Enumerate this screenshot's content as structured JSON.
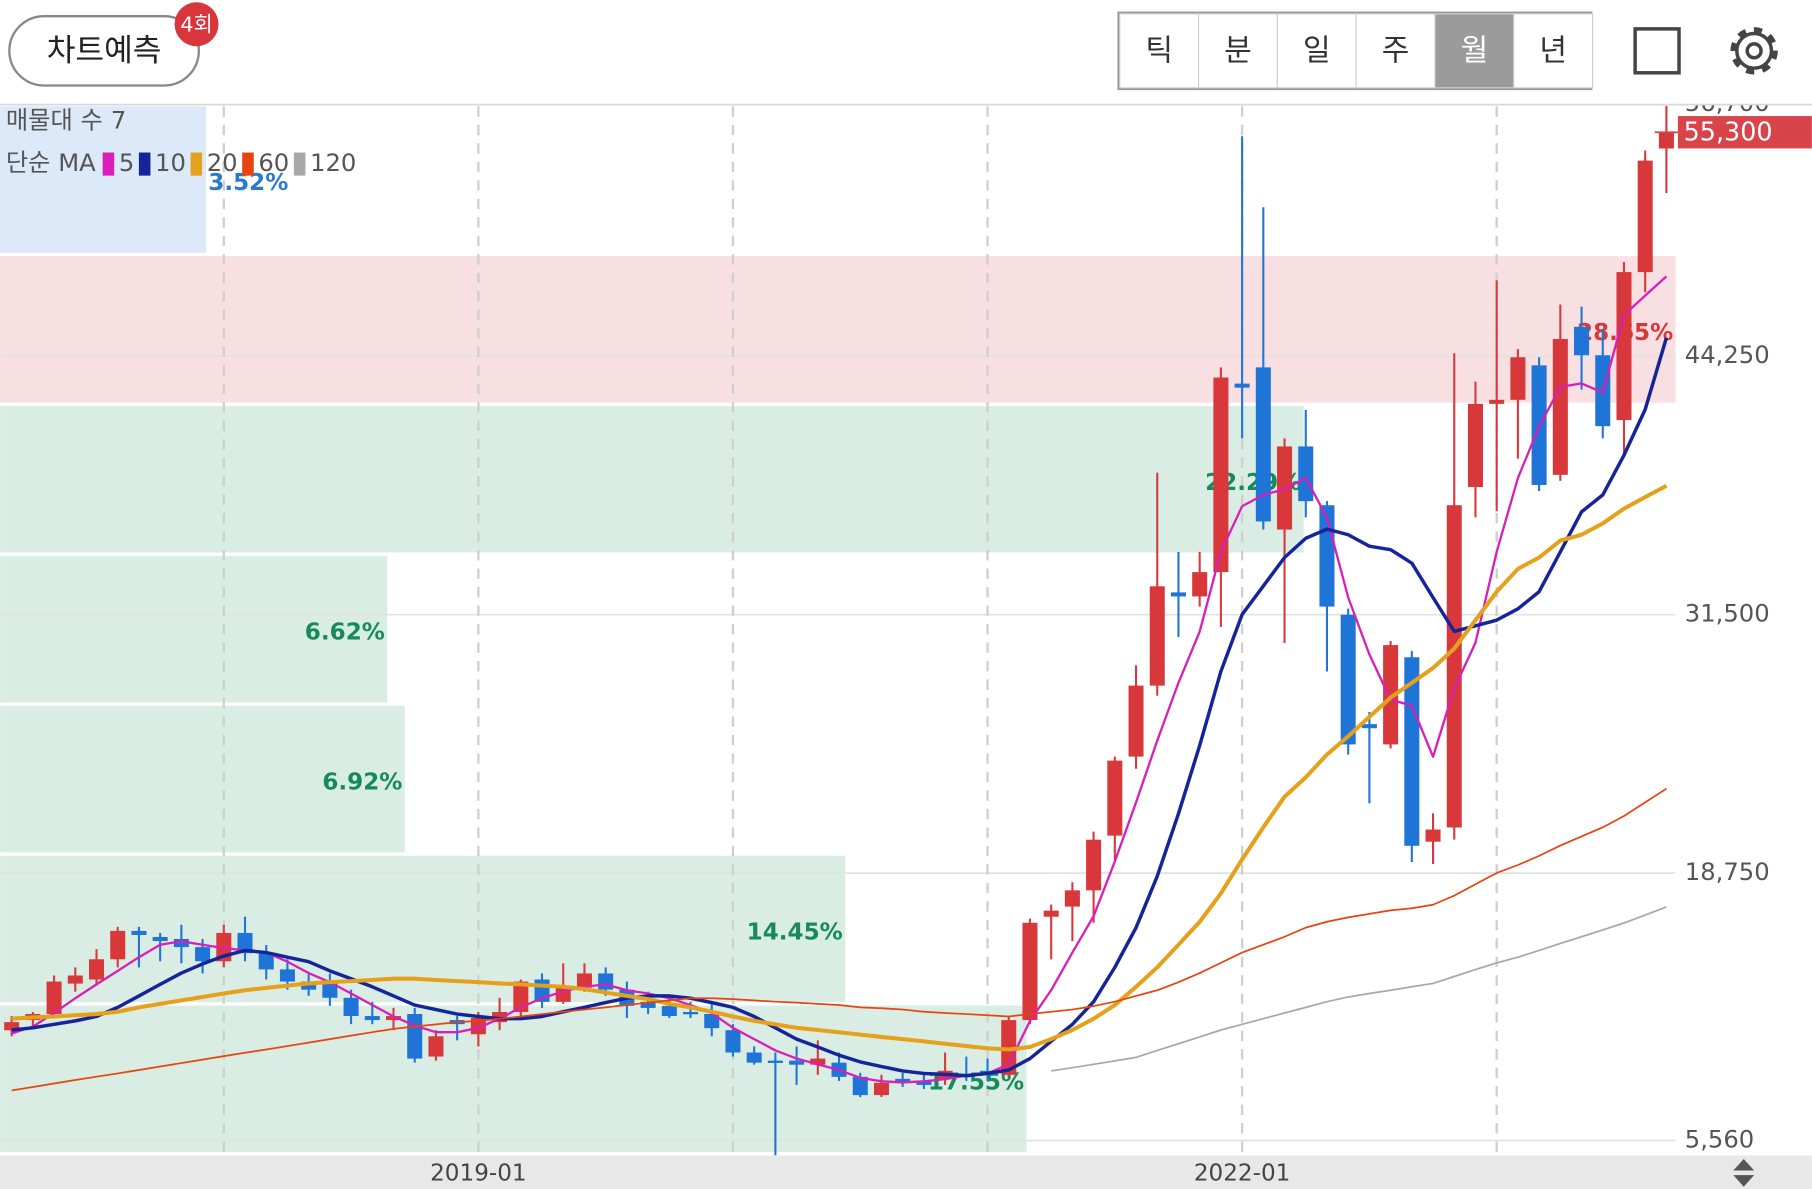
{
  "header": {
    "predict_button": "차트예측",
    "badge": "4회",
    "periods": [
      "틱",
      "분",
      "일",
      "주",
      "월",
      "년"
    ],
    "selected_period": 4
  },
  "chart_data": {
    "type": "candlestick",
    "categories": [
      null,
      null,
      null,
      null,
      null,
      null,
      null,
      null,
      null,
      null,
      null,
      null,
      null,
      null,
      null,
      null,
      null,
      null,
      null,
      null,
      null,
      null,
      "2019-01",
      null,
      null,
      null,
      null,
      null,
      null,
      null,
      null,
      null,
      null,
      null,
      null,
      null,
      null,
      null,
      null,
      null,
      null,
      null,
      null,
      null,
      null,
      null,
      null,
      null,
      null,
      null,
      null,
      null,
      null,
      null,
      null,
      null,
      null,
      null,
      "2022-01",
      null,
      null,
      null,
      null,
      null,
      null,
      null,
      null,
      null,
      null,
      null,
      null,
      null,
      null,
      null,
      null,
      null,
      null,
      null,
      null
    ],
    "open": [
      11000,
      11500,
      11800,
      13300,
      13500,
      14500,
      15900,
      15600,
      15500,
      15100,
      14400,
      15800,
      14800,
      14000,
      13400,
      13400,
      12600,
      11700,
      11500,
      11800,
      9700,
      11500,
      10800,
      11400,
      11900,
      13500,
      12400,
      13100,
      13800,
      13000,
      12400,
      12200,
      11900,
      11800,
      11000,
      9900,
      9500,
      9500,
      9300,
      9400,
      8700,
      7800,
      8600,
      8500,
      8600,
      8800,
      9000,
      8800,
      11500,
      16600,
      17100,
      17900,
      20600,
      24500,
      28000,
      32600,
      32400,
      33600,
      42900,
      43700,
      35700,
      39800,
      36900,
      31500,
      26100,
      25100,
      29400,
      20300,
      21000,
      37800,
      41900,
      42100,
      43800,
      38400,
      45700,
      44300,
      41100,
      48400,
      54500
    ],
    "high": [
      11700,
      11900,
      13700,
      14100,
      15000,
      16100,
      16100,
      15800,
      16200,
      15500,
      16200,
      16600,
      15200,
      14500,
      13800,
      13800,
      13000,
      12400,
      12100,
      12100,
      11000,
      11700,
      11900,
      12600,
      13500,
      13800,
      14300,
      14300,
      14100,
      13400,
      12900,
      12700,
      12400,
      12300,
      11300,
      10200,
      9900,
      10200,
      10500,
      9900,
      8900,
      8800,
      8900,
      8800,
      9900,
      9700,
      9600,
      11700,
      16500,
      17200,
      18300,
      20800,
      24500,
      29000,
      38500,
      34600,
      34600,
      43700,
      55100,
      51600,
      40200,
      41600,
      37100,
      31800,
      26700,
      30200,
      29700,
      21700,
      44400,
      43000,
      48000,
      44600,
      44200,
      46800,
      46700,
      45600,
      48900,
      54400,
      56600
    ],
    "low": [
      10700,
      11200,
      11600,
      12900,
      13200,
      14100,
      14100,
      14400,
      14300,
      13800,
      14100,
      14400,
      13500,
      13000,
      12700,
      12200,
      11300,
      11300,
      11000,
      9400,
      9500,
      10500,
      10200,
      11000,
      11700,
      12100,
      12300,
      12900,
      12700,
      11600,
      11800,
      11600,
      11600,
      10700,
      9700,
      9300,
      4830,
      8300,
      8800,
      8500,
      7700,
      7700,
      8200,
      8100,
      8300,
      8500,
      8500,
      8700,
      11300,
      14500,
      15400,
      16300,
      19400,
      23900,
      27500,
      30400,
      31900,
      30900,
      40200,
      35700,
      30100,
      36300,
      28700,
      24600,
      22200,
      24900,
      19300,
      19200,
      20400,
      36300,
      36600,
      39200,
      37600,
      38100,
      42600,
      40200,
      39400,
      47400,
      52300
    ],
    "close": [
      11400,
      11800,
      13400,
      13700,
      14500,
      15900,
      15700,
      15400,
      15100,
      14400,
      15800,
      14800,
      14000,
      13400,
      13000,
      12600,
      11700,
      11500,
      11700,
      9600,
      10700,
      11300,
      11600,
      11900,
      13400,
      12400,
      13100,
      13800,
      13000,
      12200,
      12100,
      11700,
      11800,
      11100,
      9900,
      9400,
      9400,
      9300,
      9600,
      8700,
      7800,
      8400,
      8400,
      8300,
      9000,
      8700,
      8800,
      11500,
      16300,
      16900,
      17900,
      20400,
      24300,
      28000,
      32900,
      32400,
      33600,
      43200,
      42700,
      36100,
      39800,
      37100,
      31900,
      25100,
      25900,
      30000,
      20100,
      20900,
      36900,
      41900,
      42100,
      44200,
      37900,
      45100,
      44300,
      40800,
      48400,
      53900,
      55300
    ],
    "up_color": "#d8383a",
    "down_color": "#1f74d8",
    "ma_title": "단순 MA",
    "ma": [
      {
        "name": "5",
        "color": "#d81fb8",
        "values": [
          10840,
          11180,
          11850,
          12580,
          13260,
          13930,
          14600,
          15220,
          15390,
          15220,
          15050,
          14940,
          14830,
          14380,
          13820,
          13370,
          12810,
          12240,
          11680,
          11230,
          10900,
          10900,
          11120,
          11570,
          12130,
          12580,
          12920,
          13140,
          13260,
          12970,
          12810,
          12580,
          12240,
          11850,
          11120,
          10560,
          10000,
          9600,
          9320,
          9040,
          8650,
          8480,
          8420,
          8480,
          8590,
          8760,
          8870,
          9320,
          11460,
          12970,
          14830,
          16630,
          19320,
          22240,
          25280,
          28140,
          30670,
          34600,
          36850,
          37410,
          37690,
          38250,
          36290,
          32350,
          29540,
          27300,
          27020,
          24490,
          27860,
          30110,
          34600,
          38250,
          40780,
          42740,
          42910,
          42460,
          46280,
          47240,
          48190
        ]
      },
      {
        "name": "10",
        "color": "#16249a",
        "values": [
          11010,
          11120,
          11290,
          11460,
          11680,
          12130,
          12690,
          13260,
          13820,
          14270,
          14660,
          14940,
          14830,
          14600,
          14380,
          13930,
          13540,
          13140,
          12690,
          12240,
          12020,
          11800,
          11680,
          11570,
          11570,
          11680,
          11910,
          12130,
          12360,
          12580,
          12690,
          12690,
          12580,
          12360,
          12130,
          11680,
          11120,
          10560,
          10170,
          9770,
          9440,
          9210,
          8990,
          8870,
          8820,
          8760,
          8870,
          9040,
          9600,
          10450,
          11290,
          12410,
          14100,
          16060,
          18590,
          21680,
          25050,
          28700,
          31510,
          32910,
          34320,
          35270,
          35720,
          35440,
          34880,
          34710,
          34040,
          32350,
          30670,
          30950,
          31230,
          31790,
          32630,
          34600,
          36570,
          37410,
          39370,
          41620,
          45160
        ]
      },
      {
        "name": "20",
        "color": "#e6a11c",
        "values": [
          11570,
          11630,
          11680,
          11740,
          11800,
          11910,
          12130,
          12300,
          12470,
          12640,
          12810,
          12970,
          13090,
          13200,
          13310,
          13370,
          13420,
          13480,
          13540,
          13540,
          13480,
          13420,
          13370,
          13310,
          13260,
          13200,
          13140,
          13030,
          12860,
          12690,
          12530,
          12300,
          12130,
          11910,
          11680,
          11460,
          11290,
          11120,
          11010,
          10900,
          10780,
          10670,
          10560,
          10450,
          10330,
          10220,
          10110,
          10050,
          10170,
          10560,
          11010,
          11570,
          12240,
          13140,
          14100,
          15220,
          16350,
          17750,
          19430,
          21010,
          22520,
          23480,
          24600,
          25500,
          26460,
          27410,
          28140,
          28870,
          29830,
          31230,
          32630,
          33760,
          34320,
          35160,
          35440,
          36000,
          36730,
          37300,
          37860
        ]
      },
      {
        "name": "60",
        "color": "#e8440e",
        "values": [
          8030,
          8200,
          8370,
          8540,
          8710,
          8870,
          9040,
          9210,
          9380,
          9550,
          9720,
          9890,
          10050,
          10220,
          10390,
          10560,
          10730,
          10900,
          11070,
          11180,
          11290,
          11400,
          11460,
          11570,
          11680,
          11800,
          11910,
          12020,
          12130,
          12240,
          12360,
          12470,
          12580,
          12580,
          12530,
          12470,
          12410,
          12360,
          12300,
          12240,
          12130,
          12080,
          12020,
          11910,
          11850,
          11800,
          11740,
          11680,
          11800,
          11910,
          12020,
          12190,
          12410,
          12690,
          12970,
          13370,
          13820,
          14320,
          14830,
          15220,
          15610,
          16060,
          16350,
          16570,
          16740,
          16910,
          17020,
          17190,
          17640,
          18200,
          18760,
          19150,
          19600,
          20110,
          20560,
          21010,
          21570,
          22240,
          22920
        ]
      },
      {
        "name": "120",
        "color": "#a8a8a8",
        "values": [
          null,
          null,
          null,
          null,
          null,
          null,
          null,
          null,
          null,
          null,
          null,
          null,
          null,
          null,
          null,
          null,
          null,
          null,
          null,
          null,
          null,
          null,
          null,
          null,
          null,
          null,
          null,
          null,
          null,
          null,
          null,
          null,
          null,
          null,
          null,
          null,
          null,
          null,
          null,
          null,
          null,
          null,
          null,
          null,
          null,
          null,
          null,
          null,
          null,
          8990,
          9150,
          9320,
          9490,
          9660,
          10000,
          10330,
          10670,
          11010,
          11290,
          11570,
          11850,
          12130,
          12410,
          12640,
          12810,
          12970,
          13140,
          13310,
          13650,
          13990,
          14320,
          14600,
          14940,
          15280,
          15610,
          15950,
          16290,
          16680,
          17080
        ]
      }
    ],
    "profile": {
      "title": "매물대 수",
      "count": 7,
      "values": [
        3.52,
        28.65,
        22.29,
        6.62,
        6.92,
        14.45,
        17.55
      ],
      "value_labels": [
        "3.52%",
        "28.65%",
        "22.29%",
        "6.62%",
        "6.92%",
        "14.45%",
        "17.55%"
      ],
      "colors": [
        "#dbe9f8",
        "#f8dfe1",
        "#d9ede4",
        "#d9ede4",
        "#d9ede4",
        "#d9ede4",
        "#d9ede4"
      ],
      "label_colors": [
        "#2a7bd0",
        "#d8383a",
        "#168a58",
        "#168a58",
        "#168a58",
        "#168a58",
        "#168a58"
      ]
    },
    "ylim": [
      4820,
      56580
    ],
    "yticks": [
      {
        "value": 5560,
        "label": "5,560"
      },
      {
        "value": 18750,
        "label": "18,750"
      },
      {
        "value": 31500,
        "label": "31,500"
      },
      {
        "value": 44250,
        "label": "44,250"
      },
      {
        "value": 56700,
        "label": "56,700"
      }
    ],
    "current": {
      "value": 55300,
      "label": "55,300"
    },
    "current_color": "#d9434a",
    "grid": true
  }
}
